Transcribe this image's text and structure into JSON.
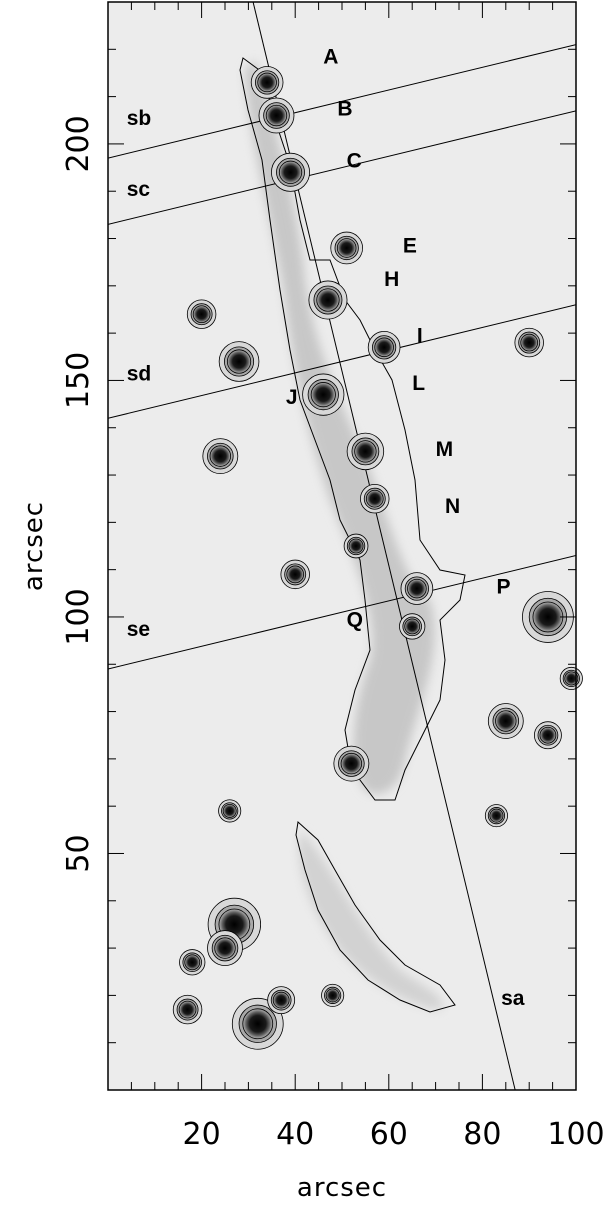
{
  "figure": {
    "x_axis": {
      "label": "arcsec",
      "range": [
        0,
        100
      ],
      "ticks": [
        20,
        40,
        60,
        80,
        100
      ],
      "tick_labels": [
        "20",
        "40",
        "60",
        "80",
        "100"
      ]
    },
    "y_axis": {
      "label": "arcsec",
      "range": [
        0,
        230
      ],
      "ticks": [
        50,
        100,
        150,
        200
      ],
      "tick_labels": [
        "50",
        "100",
        "150",
        "200"
      ]
    },
    "labels": [
      {
        "text": "A",
        "x": 46,
        "y": 217
      },
      {
        "text": "B",
        "x": 49,
        "y": 206
      },
      {
        "text": "C",
        "x": 51,
        "y": 195
      },
      {
        "text": "E",
        "x": 63,
        "y": 177
      },
      {
        "text": "H",
        "x": 59,
        "y": 170
      },
      {
        "text": "I",
        "x": 66,
        "y": 158
      },
      {
        "text": "J",
        "x": 38,
        "y": 145
      },
      {
        "text": "L",
        "x": 65,
        "y": 148
      },
      {
        "text": "M",
        "x": 70,
        "y": 134
      },
      {
        "text": "N",
        "x": 72,
        "y": 122
      },
      {
        "text": "P",
        "x": 83,
        "y": 105
      },
      {
        "text": "Q",
        "x": 51,
        "y": 98
      },
      {
        "text": "sb",
        "x": 4,
        "y": 204
      },
      {
        "text": "sc",
        "x": 4,
        "y": 189
      },
      {
        "text": "sd",
        "x": 4,
        "y": 150
      },
      {
        "text": "se",
        "x": 4,
        "y": 96
      },
      {
        "text": "sa",
        "x": 84,
        "y": 18
      }
    ],
    "slits": [
      {
        "name": "sa",
        "x1": 31,
        "y1": 230,
        "x2": 87,
        "y2": 0
      },
      {
        "name": "sb",
        "x1": 0,
        "y1": 197,
        "x2": 100,
        "y2": 221
      },
      {
        "name": "sc",
        "x1": 0,
        "y1": 183,
        "x2": 100,
        "y2": 207
      },
      {
        "name": "sd",
        "x1": 0,
        "y1": 142,
        "x2": 100,
        "y2": 166
      },
      {
        "name": "se",
        "x1": 0,
        "y1": 89,
        "x2": 100,
        "y2": 113
      }
    ],
    "sources": [
      {
        "x": 34,
        "y": 213,
        "r": 2.0
      },
      {
        "x": 36,
        "y": 206,
        "r": 2.2
      },
      {
        "x": 39,
        "y": 194,
        "r": 2.4
      },
      {
        "x": 51,
        "y": 178,
        "r": 2.0
      },
      {
        "x": 47,
        "y": 167,
        "r": 2.4
      },
      {
        "x": 59,
        "y": 157,
        "r": 2.0
      },
      {
        "x": 46,
        "y": 147,
        "r": 2.6
      },
      {
        "x": 55,
        "y": 135,
        "r": 2.3
      },
      {
        "x": 57,
        "y": 125,
        "r": 1.8
      },
      {
        "x": 53,
        "y": 115,
        "r": 1.5
      },
      {
        "x": 66,
        "y": 106,
        "r": 2.0
      },
      {
        "x": 65,
        "y": 98,
        "r": 1.6
      },
      {
        "x": 20,
        "y": 164,
        "r": 1.8
      },
      {
        "x": 28,
        "y": 154,
        "r": 2.5
      },
      {
        "x": 24,
        "y": 134,
        "r": 2.2
      },
      {
        "x": 40,
        "y": 109,
        "r": 1.8
      },
      {
        "x": 90,
        "y": 158,
        "r": 1.8
      },
      {
        "x": 94,
        "y": 100,
        "r": 3.2
      },
      {
        "x": 85,
        "y": 78,
        "r": 2.2
      },
      {
        "x": 52,
        "y": 69,
        "r": 2.2
      },
      {
        "x": 27,
        "y": 35,
        "r": 3.3
      },
      {
        "x": 25,
        "y": 30,
        "r": 2.2
      },
      {
        "x": 18,
        "y": 27,
        "r": 1.6
      },
      {
        "x": 17,
        "y": 17,
        "r": 1.8
      },
      {
        "x": 32,
        "y": 14,
        "r": 3.2
      },
      {
        "x": 37,
        "y": 19,
        "r": 1.7
      },
      {
        "x": 48,
        "y": 20,
        "r": 1.4
      },
      {
        "x": 26,
        "y": 59,
        "r": 1.4
      },
      {
        "x": 83,
        "y": 58,
        "r": 1.4
      },
      {
        "x": 94,
        "y": 75,
        "r": 1.7
      },
      {
        "x": 99,
        "y": 87,
        "r": 1.4
      }
    ]
  }
}
